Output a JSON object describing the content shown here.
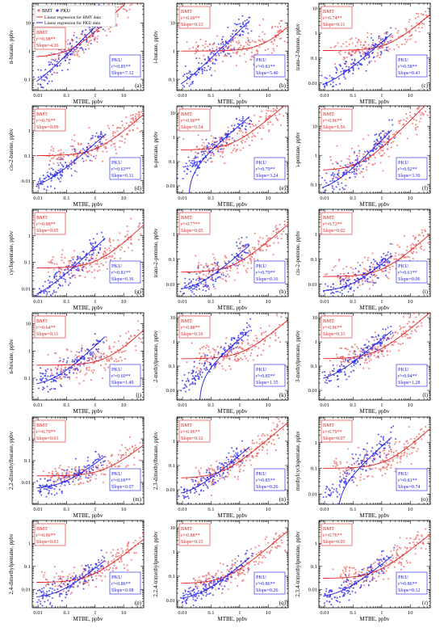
{
  "figure": {
    "legend": {
      "bmt_label": "BMT",
      "pku_label": "PKU",
      "bmt_line_label": "Linear regression for BMT data",
      "pku_line_label": "Linear regression for PKU data"
    },
    "colors": {
      "bmt": "#f07070",
      "bmt_line": "#e02020",
      "pku": "#3a3aee",
      "pku_line": "#1a1ae0"
    }
  },
  "chart_data": [
    {
      "letter": "(a)",
      "type": "scatter",
      "xlabel": "MTBE, ppbv",
      "ylabel": "n-butane, ppbv",
      "xticks": [
        "0.01",
        "0.1",
        "1",
        "10"
      ],
      "yticks": [
        "0.1",
        "1",
        "10"
      ],
      "xlim_log10": [
        -2.2,
        1.7
      ],
      "ylim_log10": [
        -1.4,
        1.7
      ],
      "bmt": {
        "name": "BMT",
        "r2": "r²=0.98**",
        "slope": "Slope=4.26",
        "slope_value": 4.26,
        "intercept": 0.6
      },
      "pku": {
        "name": "PKU",
        "r2": "r²=0.85**",
        "slope": "Slope=7.12",
        "slope_value": 7.12,
        "intercept": 0.02
      }
    },
    {
      "letter": "(b)",
      "type": "scatter",
      "xlabel": "MTBE, ppbv",
      "ylabel": "i-butane, ppbv",
      "xticks": [
        "0.01",
        "0.1",
        "1",
        "10"
      ],
      "yticks": [
        "0.1",
        "1",
        "10"
      ],
      "xlim_log10": [
        -2.2,
        1.7
      ],
      "ylim_log10": [
        -1.4,
        1.7
      ],
      "bmt": {
        "name": "BMT",
        "r2": "r²=0.69**",
        "slope": "Slope=0.13",
        "slope_value": 0.13,
        "intercept": 1.0
      },
      "pku": {
        "name": "PKU",
        "r2": "r²=0.81**",
        "slope": "Slope=5.40",
        "slope_value": 5.4,
        "intercept": 0.02
      }
    },
    {
      "letter": "(c)",
      "type": "scatter",
      "xlabel": "MTBE, ppbv",
      "ylabel": "trans-2-butene, ppbv",
      "xticks": [
        "0.01",
        "0.1",
        "1",
        "10"
      ],
      "yticks": [
        "0.01",
        "0.1",
        "1",
        "10"
      ],
      "xlim_log10": [
        -2.2,
        1.7
      ],
      "ylim_log10": [
        -2.3,
        1.2
      ],
      "bmt": {
        "name": "BMT",
        "r2": "r²=0.74**",
        "slope": "Slope=0.11",
        "slope_value": 0.11,
        "intercept": 0.2
      },
      "pku": {
        "name": "PKU",
        "r2": "r²=0.58**",
        "slope": "Slope=0.43",
        "slope_value": 0.43,
        "intercept": 0.005
      }
    },
    {
      "letter": "(d)",
      "type": "scatter",
      "xlabel": "MTBE, ppbv",
      "ylabel": "cis-2-butene, ppbv",
      "xticks": [
        "0.01",
        "0.1",
        "1",
        "10"
      ],
      "yticks": [
        "0.01",
        "0.1",
        "1"
      ],
      "xlim_log10": [
        -2.2,
        1.7
      ],
      "ylim_log10": [
        -2.5,
        1.0
      ],
      "bmt": {
        "name": "BMT",
        "r2": "r²=0.76**",
        "slope": "Slope=0.09",
        "slope_value": 0.09,
        "intercept": 0.1
      },
      "pku": {
        "name": "PKU",
        "r2": "r²=0.63**",
        "slope": "Slope=0.31",
        "slope_value": 0.31,
        "intercept": 0.004
      }
    },
    {
      "letter": "(e)",
      "type": "scatter",
      "xlabel": "MTBE, ppbv",
      "ylabel": "n-pentane, ppbv",
      "xticks": [
        "0.01",
        "0.1",
        "1",
        "10"
      ],
      "yticks": [
        "0.01",
        "0.1",
        "1",
        "10"
      ],
      "xlim_log10": [
        -2.2,
        1.7
      ],
      "ylim_log10": [
        -2.3,
        1.3
      ],
      "bmt": {
        "name": "BMT",
        "r2": "r²=0.90**",
        "slope": "Slope=0.54",
        "slope_value": 0.54,
        "intercept": 0.3
      },
      "pku": {
        "name": "PKU",
        "r2": "r²=0.79**",
        "slope": "Slope=3.24",
        "slope_value": 3.24,
        "intercept": -0.05
      }
    },
    {
      "letter": "(f)",
      "type": "scatter",
      "xlabel": "MTBE, ppbv",
      "ylabel": "i-pentane, ppbv",
      "xticks": [
        "0.01",
        "0.1",
        "1",
        "10"
      ],
      "yticks": [
        "0.1",
        "1",
        "10"
      ],
      "xlim_log10": [
        -2.2,
        1.7
      ],
      "ylim_log10": [
        -1.3,
        1.7
      ],
      "bmt": {
        "name": "BMT",
        "r2": "r²=0.96**",
        "slope": "Slope=1.56",
        "slope_value": 1.56,
        "intercept": 0.3
      },
      "pku": {
        "name": "PKU",
        "r2": "r²=0.92**",
        "slope": "Slope=3.30",
        "slope_value": 3.3,
        "intercept": 0.05
      }
    },
    {
      "letter": "(g)",
      "type": "scatter",
      "xlabel": "MTBE, ppbv",
      "ylabel": "cyclopentane, ppbv",
      "xticks": [
        "0.01",
        "0.1",
        "1",
        "10"
      ],
      "yticks": [
        "0.01",
        "0.1",
        "1"
      ],
      "xlim_log10": [
        -2.2,
        1.7
      ],
      "ylim_log10": [
        -2.3,
        1.0
      ],
      "bmt": {
        "name": "BMT",
        "r2": "r²=0.88**",
        "slope": "Slope=0.05",
        "slope_value": 0.05,
        "intercept": 0.06
      },
      "pku": {
        "name": "PKU",
        "r2": "r²=0.81**",
        "slope": "Slope=0.36",
        "slope_value": 0.36,
        "intercept": 0.003
      }
    },
    {
      "letter": "(h)",
      "type": "scatter",
      "xlabel": "MTBE, ppbv",
      "ylabel": "trans-2-pentene, ppbv",
      "xticks": [
        "0.01",
        "0.1",
        "1",
        "10"
      ],
      "yticks": [
        "0.01",
        "0.1",
        "1"
      ],
      "xlim_log10": [
        -2.2,
        1.7
      ],
      "ylim_log10": [
        -2.5,
        1.0
      ],
      "bmt": {
        "name": "BMT",
        "r2": "r²=0.77**",
        "slope": "Slope=0.05",
        "slope_value": 0.05,
        "intercept": 0.03
      },
      "pku": {
        "name": "PKU",
        "r2": "r²=0.79**",
        "slope": "Slope=0.16",
        "slope_value": 0.16,
        "intercept": 0.005
      }
    },
    {
      "letter": "(i)",
      "type": "scatter",
      "xlabel": "MTBE, ppbv",
      "ylabel": "cis-2-pentene, ppbv",
      "xticks": [
        "0.01",
        "0.1",
        "1",
        "10"
      ],
      "yticks": [
        "0.01",
        "0.1",
        "1"
      ],
      "xlim_log10": [
        -2.2,
        1.7
      ],
      "ylim_log10": [
        -2.5,
        1.0
      ],
      "bmt": {
        "name": "BMT",
        "r2": "r²=0.72**",
        "slope": "Slope=0.02",
        "slope_value": 0.02,
        "intercept": 0.02
      },
      "pku": {
        "name": "PKU",
        "r2": "r²=0.61**",
        "slope": "Slope=0.06",
        "slope_value": 0.06,
        "intercept": 0.005
      }
    },
    {
      "letter": "(j)",
      "type": "scatter",
      "xlabel": "MTBE, ppbv",
      "ylabel": "n-hexane, ppbv",
      "xticks": [
        "0.01",
        "0.1",
        "1",
        "10"
      ],
      "yticks": [
        "0.1",
        "1",
        "10"
      ],
      "xlim_log10": [
        -2.2,
        1.7
      ],
      "ylim_log10": [
        -1.8,
        1.4
      ],
      "bmt": {
        "name": "BMT",
        "r2": "r²=0.64**",
        "slope": "Slope=0.11",
        "slope_value": 0.11,
        "intercept": 0.3
      },
      "pku": {
        "name": "PKU",
        "r2": "r²=0.69**",
        "slope": "Slope=1.49",
        "slope_value": 1.49,
        "intercept": 0.05
      }
    },
    {
      "letter": "(k)",
      "type": "scatter",
      "xlabel": "MTBE, ppbv",
      "ylabel": "2-methylpentane, ppbv",
      "xticks": [
        "0.01",
        "0.1",
        "1",
        "10"
      ],
      "yticks": [
        "0.01",
        "0.1",
        "1",
        "10"
      ],
      "xlim_log10": [
        -2.2,
        1.7
      ],
      "ylim_log10": [
        -2.4,
        1.2
      ],
      "bmt": {
        "name": "BMT",
        "r2": "r²=0.88**",
        "slope": "Slope=0.16",
        "slope_value": 0.16,
        "intercept": 0.2
      },
      "pku": {
        "name": "PKU",
        "r2": "r²=0.85**",
        "slope": "Slope=1.35",
        "slope_value": 1.35,
        "intercept": -0.05
      }
    },
    {
      "letter": "(l)",
      "type": "scatter",
      "xlabel": "MTBE, ppbv",
      "ylabel": "3-methylpentane, ppbv",
      "xticks": [
        "0.01",
        "0.1",
        "1",
        "10"
      ],
      "yticks": [
        "0.01",
        "0.1",
        "1",
        "10"
      ],
      "xlim_log10": [
        -2.2,
        1.7
      ],
      "ylim_log10": [
        -2.4,
        1.2
      ],
      "bmt": {
        "name": "BMT",
        "r2": "r²=0.96**",
        "slope": "Slope=0.33",
        "slope_value": 0.33,
        "intercept": 0.2
      },
      "pku": {
        "name": "PKU",
        "r2": "r²=0.94**",
        "slope": "Slope=1.28",
        "slope_value": 1.28,
        "intercept": 0.02
      }
    },
    {
      "letter": "(m)",
      "type": "scatter",
      "xlabel": "MTBE, ppbv",
      "ylabel": "2,2-dimethylbutane, ppbv",
      "xticks": [
        "0.01",
        "0.1",
        "1",
        "10"
      ],
      "yticks": [
        "0.01",
        "0.1",
        "1"
      ],
      "xlim_log10": [
        -2.2,
        1.7
      ],
      "ylim_log10": [
        -3.0,
        1.0
      ],
      "bmt": {
        "name": "BMT",
        "r2": "r²=0.79**",
        "slope": "Slope=0.01",
        "slope_value": 0.01,
        "intercept": 0.02
      },
      "pku": {
        "name": "PKU",
        "r2": "r²=0.69**",
        "slope": "Slope=0.07",
        "slope_value": 0.07,
        "intercept": 0.005
      }
    },
    {
      "letter": "(n)",
      "type": "scatter",
      "xlabel": "MTBE, ppbv",
      "ylabel": "2,3-dimethylbutane, ppbv",
      "xticks": [
        "0.01",
        "0.1",
        "1",
        "10"
      ],
      "yticks": [
        "0.01",
        "0.1",
        "1"
      ],
      "xlim_log10": [
        -2.2,
        1.7
      ],
      "ylim_log10": [
        -2.6,
        1.0
      ],
      "bmt": {
        "name": "BMT",
        "r2": "r²=0.96**",
        "slope": "Slope=0.12",
        "slope_value": 0.12,
        "intercept": 0.03
      },
      "pku": {
        "name": "PKU",
        "r2": "r²=0.85**",
        "slope": "Slope=0.26",
        "slope_value": 0.26,
        "intercept": 0.005
      }
    },
    {
      "letter": "(o)",
      "type": "scatter",
      "xlabel": "MTBE, ppbv",
      "ylabel": "methylcyclopentane, ppbv",
      "xticks": [
        "0.01",
        "0.1",
        "1",
        "10"
      ],
      "yticks": [
        "0.01",
        "0.1",
        "1"
      ],
      "xlim_log10": [
        -2.2,
        1.7
      ],
      "ylim_log10": [
        -2.4,
        1.0
      ],
      "bmt": {
        "name": "BMT",
        "r2": "r²=0.79**",
        "slope": "Slope=0.07",
        "slope_value": 0.07,
        "intercept": 0.1
      },
      "pku": {
        "name": "PKU",
        "r2": "r²=0.81**",
        "slope": "Slope=0.74",
        "slope_value": 0.74,
        "intercept": -0.02
      }
    },
    {
      "letter": "(p)",
      "type": "scatter",
      "xlabel": "MTBE, ppbv",
      "ylabel": "2,4-dimethylpentane, ppbv",
      "xticks": [
        "0.01",
        "0.1",
        "1",
        "10"
      ],
      "yticks": [
        "0.01",
        "0.1",
        "1"
      ],
      "xlim_log10": [
        -2.2,
        1.7
      ],
      "ylim_log10": [
        -2.8,
        1.0
      ],
      "bmt": {
        "name": "BMT",
        "r2": "r²=0.96**",
        "slope": "Slope=0.03",
        "slope_value": 0.03,
        "intercept": 0.02
      },
      "pku": {
        "name": "PKU",
        "r2": "r²=0.86**",
        "slope": "Slope=0.08",
        "slope_value": 0.08,
        "intercept": 0.004
      }
    },
    {
      "letter": "(q)",
      "type": "scatter",
      "xlabel": "MTBE, ppbv",
      "ylabel": "2,2,4-trimethylpentane, ppbv",
      "xticks": [
        "0.01",
        "0.1",
        "1",
        "10"
      ],
      "yticks": [
        "0.01",
        "0.1",
        "1",
        "10"
      ],
      "xlim_log10": [
        -2.2,
        1.7
      ],
      "ylim_log10": [
        -2.3,
        1.3
      ],
      "bmt": {
        "name": "BMT",
        "r2": "r²=0.88**",
        "slope": "Slope=0.15",
        "slope_value": 0.15,
        "intercept": 0.05
      },
      "pku": {
        "name": "PKU",
        "r2": "r²=0.86**",
        "slope": "Slope=0.26",
        "slope_value": 0.26,
        "intercept": 0.01
      }
    },
    {
      "letter": "(r)",
      "type": "scatter",
      "xlabel": "MTBE, ppbv",
      "ylabel": "2,3,4-trimethylpentane, ppbv",
      "xticks": [
        "0.01",
        "0.1",
        "1",
        "10"
      ],
      "yticks": [
        "0.01",
        "0.1",
        "1"
      ],
      "xlim_log10": [
        -2.2,
        1.7
      ],
      "ylim_log10": [
        -2.8,
        1.0
      ],
      "bmt": {
        "name": "BMT",
        "r2": "r²=0.76**",
        "slope": "Slope=0.05",
        "slope_value": 0.05,
        "intercept": 0.03
      },
      "pku": {
        "name": "PKU",
        "r2": "r²=0.86**",
        "slope": "Slope=0.12",
        "slope_value": 0.12,
        "intercept": 0.004
      }
    }
  ]
}
